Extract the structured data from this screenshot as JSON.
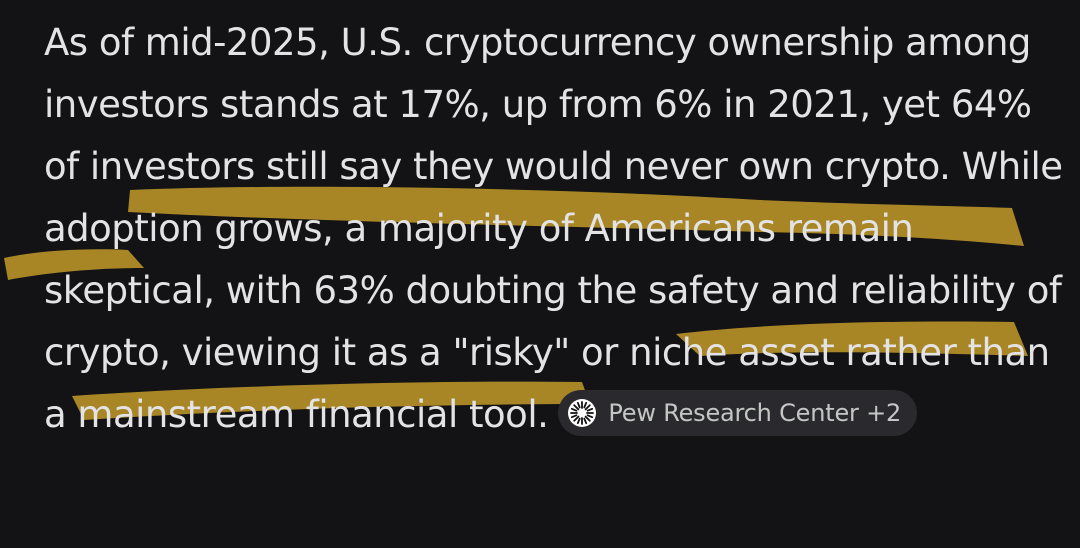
{
  "answer": {
    "text_part1": "As of mid-2025, U.S. cryptocurrency ownership among investors stands at 17%, up from 6% in 2021, yet 64% of investors still say they would never own crypto. While adoption grows, a majority of Americans remain skeptical, with 63% doubting the safety and reliability of crypto, viewing it as a \"risky\" or niche asset rather than a mainstream financial ",
    "text_part2": "tool."
  },
  "source_chip": {
    "label": "Pew Research Center +2",
    "icon": "pew-logo-icon"
  },
  "colors": {
    "background": "#131316",
    "text": "#e3e3e6",
    "chip_background": "#2a2a2e",
    "chip_text": "#c4c7c5",
    "highlight": "#c9a02a"
  }
}
